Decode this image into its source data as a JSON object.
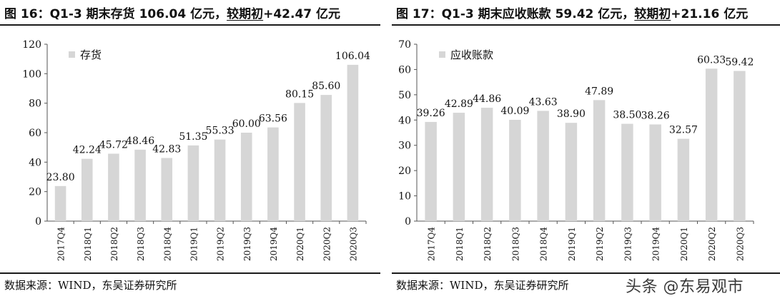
{
  "watermark": "头条 @东易观市",
  "colors": {
    "bar": "#d6d6d6",
    "axis": "#555555",
    "rule": "#1a1a1a",
    "text": "#111111"
  },
  "chart_data": [
    {
      "type": "bar",
      "title_prefix": "图 16：Q1-3 期末存货 106.04 亿元，",
      "title_underlined": "较期初",
      "title_suffix": "+42.47 亿元",
      "source": "数据来源：WIND，东吴证券研究所",
      "legend": "存货",
      "categories": [
        "2017Q4",
        "2018Q1",
        "2018Q2",
        "2018Q3",
        "2018Q4",
        "2019Q1",
        "2019Q2",
        "2019Q3",
        "2019Q4",
        "2020Q1",
        "2020Q2",
        "2020Q3"
      ],
      "values": [
        23.8,
        42.24,
        45.72,
        48.46,
        42.83,
        51.35,
        55.33,
        60.0,
        63.56,
        80.15,
        85.6,
        106.04
      ],
      "value_labels": [
        "23.80",
        "42.24",
        "45.72",
        "48.46",
        "42.83",
        "51.35",
        "55.33",
        "60.00",
        "63.56",
        "80.15",
        "85.60",
        "106.04"
      ],
      "ylim": [
        0,
        120
      ],
      "yticks": [
        0,
        20,
        40,
        60,
        80,
        100,
        120
      ],
      "grid": false
    },
    {
      "type": "bar",
      "title_prefix": "图 17：Q1-3 期末应收账款 59.42 亿元，",
      "title_underlined": "较期初",
      "title_suffix": "+21.16 亿元",
      "source": "数据来源：WIND，东吴证券研究所",
      "legend": "应收账款",
      "categories": [
        "2017Q4",
        "2018Q1",
        "2018Q2",
        "2018Q3",
        "2018Q4",
        "2019Q1",
        "2019Q2",
        "2019Q3",
        "2019Q4",
        "2020Q1",
        "2020Q2",
        "2020Q3"
      ],
      "values": [
        39.26,
        42.89,
        44.86,
        40.09,
        43.63,
        38.9,
        47.89,
        38.5,
        38.26,
        32.57,
        60.33,
        59.42
      ],
      "value_labels": [
        "39.26",
        "42.89",
        "44.86",
        "40.09",
        "43.63",
        "38.90",
        "47.89",
        "38.50",
        "38.26",
        "32.57",
        "60.33",
        "59.42"
      ],
      "ylim": [
        0,
        70
      ],
      "yticks": [
        0,
        10,
        20,
        30,
        40,
        50,
        60,
        70
      ],
      "grid": false
    }
  ]
}
